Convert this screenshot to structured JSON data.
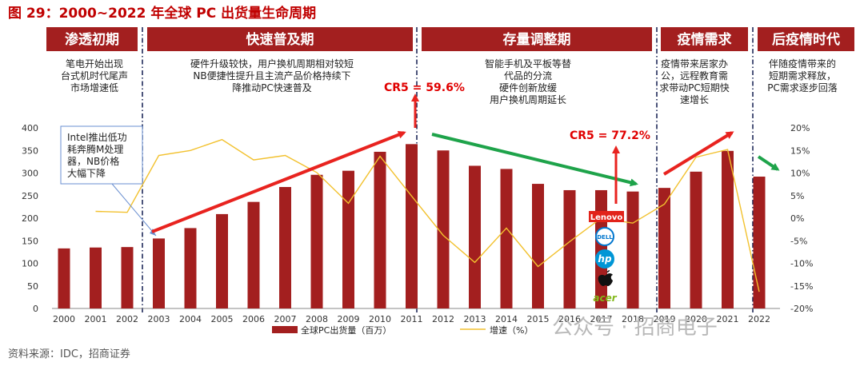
{
  "title": "图 29：2000~2022 年全球 PC 出货量生命周期",
  "source": "资料来源：IDC，招商证券",
  "watermark": "公众号 · 招商电子",
  "phases": [
    {
      "label": "渗透初期",
      "desc": [
        "笔电开始出现",
        "台式机时代尾声",
        "市场增速低"
      ]
    },
    {
      "label": "快速普及期",
      "desc": [
        "硬件升级较快，用户换机周期相对较短",
        "NB便捷性提升且主流产品价格持续下",
        "降推动PC快速普及"
      ]
    },
    {
      "label": "存量调整期",
      "desc": [
        "智能手机及平板等替",
        "代品的分流",
        "硬件创新放缓",
        "用户换机周期延长"
      ]
    },
    {
      "label": "疫情需求",
      "desc": [
        "疫情带来居家办",
        "公，远程教育需",
        "求带动PC短期快",
        "速增长"
      ]
    },
    {
      "label": "后疫情时代",
      "desc": [
        "伴随疫情带来的",
        "短期需求释放，",
        "PC需求逐步回落"
      ]
    }
  ],
  "annotation": [
    "Intel推出低功",
    "耗奔腾M处理",
    "器，NB价格",
    "大幅下降"
  ],
  "cr5_labels": [
    "CR5 = 59.6%",
    "CR5 = 77.2%"
  ],
  "brands": [
    "Lenovo",
    "DELL",
    "hp",
    "acer"
  ],
  "brand_colors": {
    "lenovo": "#e2231a",
    "dell": "#0076ce",
    "hp": "#0096d6",
    "apple": "#111111",
    "acer": "#83b81a"
  },
  "colors": {
    "bar": "#a31f1f",
    "line": "#f2c12e",
    "phase_bg": "#a31f1f",
    "red_arrow": "#e8231f",
    "green_arrow": "#1ea34a"
  },
  "chart_data": {
    "type": "bar",
    "categories": [
      "2000",
      "2001",
      "2002",
      "2003",
      "2004",
      "2005",
      "2006",
      "2007",
      "2008",
      "2009",
      "2010",
      "2011",
      "2012",
      "2013",
      "2014",
      "2015",
      "2016",
      "2017",
      "2018",
      "2019",
      "2020",
      "2021",
      "2022"
    ],
    "series": [
      {
        "name": "全球PC出货量（百万）",
        "type": "bar",
        "axis": "left",
        "values": [
          133,
          135,
          136,
          155,
          178,
          209,
          236,
          269,
          296,
          305,
          347,
          364,
          350,
          316,
          309,
          276,
          262,
          262,
          259,
          267,
          303,
          349,
          292
        ]
      },
      {
        "name": "增速（%）",
        "type": "line",
        "axis": "right",
        "values": [
          null,
          1.5,
          1.3,
          13.9,
          15.0,
          17.4,
          12.9,
          13.9,
          10.1,
          3.3,
          13.7,
          4.9,
          -3.8,
          -9.8,
          -2.2,
          -10.7,
          -5.2,
          0.0,
          -1.1,
          3.1,
          13.5,
          15.2,
          -16.3
        ]
      }
    ],
    "ylim": [
      0,
      400
    ],
    "y_ticks": [
      0,
      50,
      100,
      150,
      200,
      250,
      300,
      350,
      400
    ],
    "y2lim": [
      -20,
      20
    ],
    "y2_ticks": [
      "-20%",
      "-15%",
      "-10%",
      "-5%",
      "0%",
      "5%",
      "10%",
      "15%",
      "20%"
    ],
    "legend_position": "bottom",
    "grid": false
  }
}
